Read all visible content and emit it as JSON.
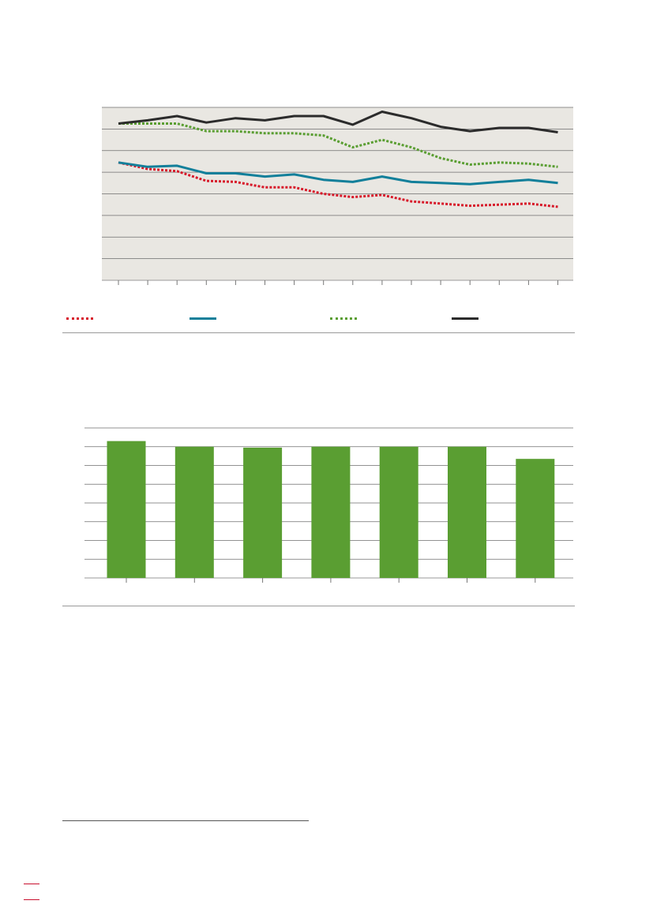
{
  "colors": {
    "plot_background": "#e9e7e2",
    "gridline": "#6e6e6e",
    "series_1": "#d7192a",
    "series_2": "#127f9a",
    "series_3": "#5a9e32",
    "series_4": "#2b2b2b",
    "bar": "#5a9e32",
    "accent_margin": "#c8102e"
  },
  "chart_data": [
    {
      "type": "line",
      "title": "",
      "xlabel": "",
      "ylabel": "",
      "x": [
        1,
        2,
        3,
        4,
        5,
        6,
        7,
        8,
        9,
        10,
        11,
        12,
        13,
        14,
        15,
        16
      ],
      "ylim": [
        0,
        8
      ],
      "grid": true,
      "legend_placement": "bottom",
      "series": [
        {
          "style": "dotted",
          "color": "#d7192a",
          "values": [
            5.45,
            5.15,
            5.05,
            4.6,
            4.55,
            4.3,
            4.3,
            4.0,
            3.85,
            3.95,
            3.65,
            3.55,
            3.45,
            3.5,
            3.55,
            3.4
          ]
        },
        {
          "style": "solid",
          "color": "#127f9a",
          "values": [
            5.45,
            5.25,
            5.3,
            4.95,
            4.95,
            4.8,
            4.9,
            4.65,
            4.55,
            4.8,
            4.55,
            4.5,
            4.45,
            4.55,
            4.65,
            4.5
          ]
        },
        {
          "style": "dotted",
          "color": "#5a9e32",
          "values": [
            7.25,
            7.25,
            7.25,
            6.9,
            6.9,
            6.8,
            6.8,
            6.7,
            6.15,
            6.5,
            6.15,
            5.65,
            5.35,
            5.45,
            5.4,
            5.25
          ]
        },
        {
          "style": "solid",
          "color": "#2b2b2b",
          "values": [
            7.25,
            7.4,
            7.6,
            7.3,
            7.5,
            7.4,
            7.6,
            7.6,
            7.2,
            7.8,
            7.5,
            7.1,
            6.9,
            7.05,
            7.05,
            6.85
          ]
        }
      ],
      "legend": [
        "",
        "",
        "",
        ""
      ]
    },
    {
      "type": "bar",
      "title": "",
      "xlabel": "",
      "ylabel": "",
      "categories": [
        "",
        "",
        "",
        "",
        "",
        "",
        ""
      ],
      "values": [
        7.3,
        7.0,
        6.95,
        7.0,
        7.0,
        7.0,
        6.35
      ],
      "ylim": [
        0,
        8
      ],
      "grid": true
    }
  ]
}
